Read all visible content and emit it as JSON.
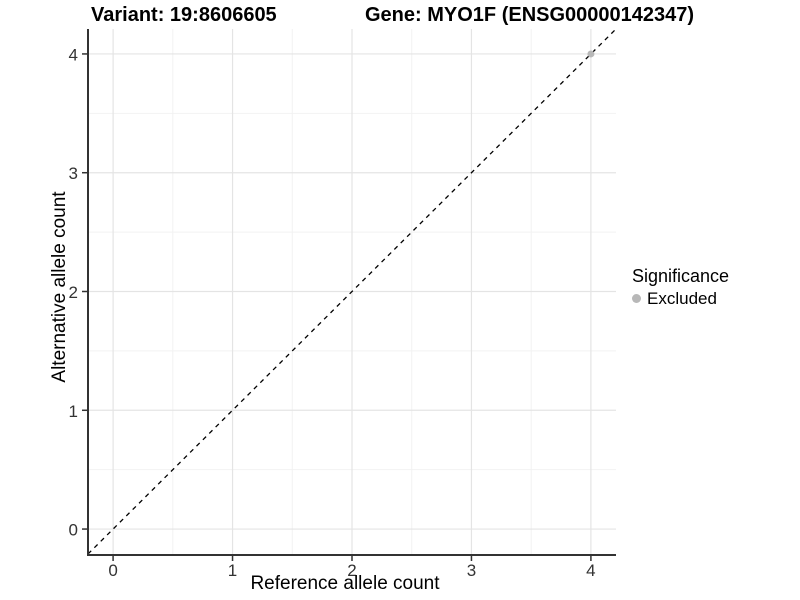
{
  "titles": {
    "variant": "Variant: 19:8606605",
    "gene": "Gene: MYO1F (ENSG00000142347)"
  },
  "chart_data": {
    "type": "scatter",
    "title_left": "Variant: 19:8606605",
    "title_right": "Gene: MYO1F (ENSG00000142347)",
    "xlabel": "Reference allele count",
    "ylabel": "Alternative allele count",
    "xlim": [
      -0.21,
      4.21
    ],
    "ylim": [
      -0.21,
      4.21
    ],
    "x_ticks": [
      0,
      1,
      2,
      3,
      4
    ],
    "y_ticks": [
      0,
      1,
      2,
      3,
      4
    ],
    "x_minor_ticks": [
      0.5,
      1.5,
      2.5,
      3.5
    ],
    "y_minor_ticks": [
      0.5,
      1.5,
      2.5,
      3.5
    ],
    "grid": "major and minor, light gray on white panel",
    "reference_line": {
      "kind": "identity",
      "slope": 1,
      "intercept": 0,
      "style": "dashed",
      "color": "#000000"
    },
    "series": [
      {
        "name": "Excluded",
        "color": "#b8b8b8",
        "points": [
          {
            "x": 4,
            "y": 4
          }
        ]
      }
    ],
    "legend": {
      "title": "Significance",
      "position": "right",
      "entries": [
        {
          "label": "Excluded",
          "color": "#b8b8b8"
        }
      ]
    },
    "colors": {
      "grid_major": "#e4e4e4",
      "grid_minor": "#f2f2f2",
      "axis_line": "#333333",
      "tick_label": "#333333",
      "title_text": "#000000",
      "point_excluded": "#b8b8b8"
    }
  }
}
